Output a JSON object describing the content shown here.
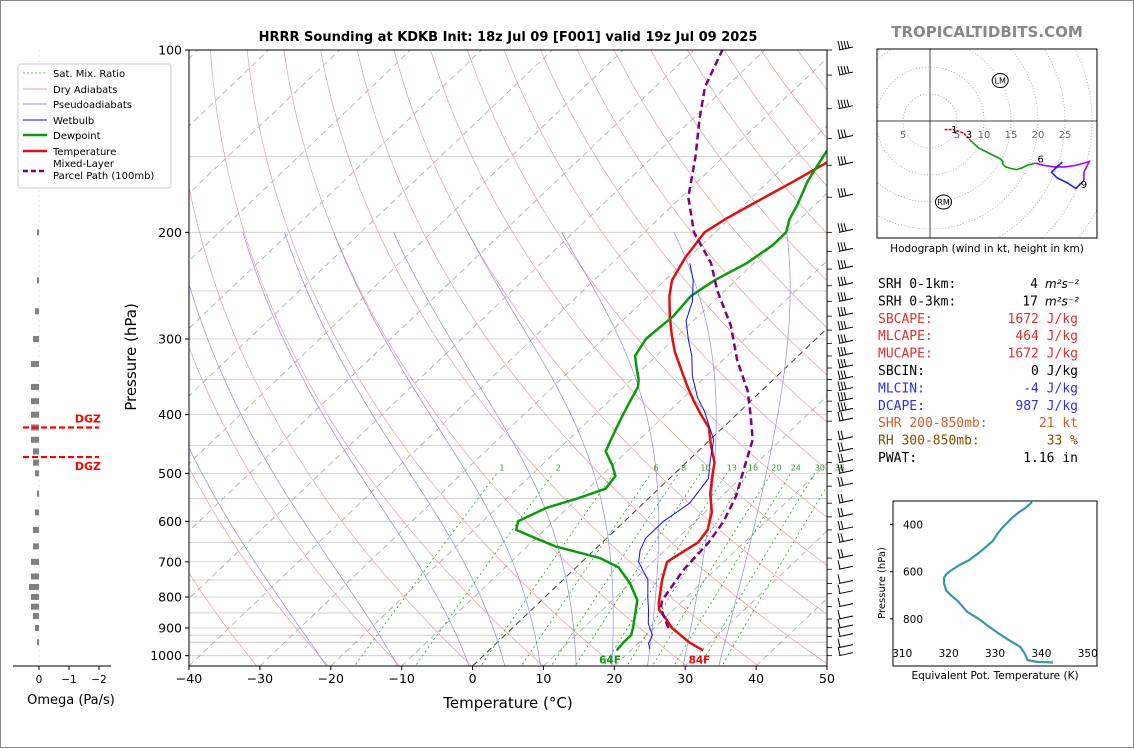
{
  "title": "HRRR Sounding at KDKB Init: 18z Jul 09 [F001] valid 19z Jul 09 2025",
  "watermark": "TROPICALTIDBITS.COM",
  "colors": {
    "temperature": "#e01010",
    "dewpoint": "#0a9a0a",
    "wetbulb": "#1010e0",
    "parcel": "#800080",
    "dgz": "#ff0000",
    "theta_e": "#3399aa",
    "hodo_0_3": "#e01010",
    "hodo_3_6": "#0a9a0a",
    "hodo_6_9": "#b400ff",
    "hodo_9_12": "#2020e0"
  },
  "legend": [
    "Sat. Mix. Ratio",
    "Dry Adiabats",
    "Pseudoadiabats",
    "Wetbulb",
    "Dewpoint",
    "Temperature",
    "Mixed-Layer\nParcel Path (100mb)"
  ],
  "omega": {
    "xlabel": "Omega (Pa/s)",
    "ticks": [
      "0",
      "−1",
      "−2"
    ],
    "dgz_label": "DGZ"
  },
  "sfc_labels": {
    "dewpoint": "64F",
    "temperature": "84F"
  },
  "hodograph": {
    "caption": "Hodograph (wind in kt, height in km)",
    "ring_labels": [
      "5",
      "5",
      "10",
      "15",
      "20",
      "25"
    ],
    "height_labels": [
      "1",
      "3",
      "6",
      "9"
    ],
    "storm_labels": [
      "LM",
      "RM"
    ]
  },
  "indices": [
    {
      "label": "SRH 0-1km:",
      "value": "4",
      "unit": "m²s⁻²",
      "color": "#000000"
    },
    {
      "label": "SRH 0-3km:",
      "value": "17",
      "unit": "m²s⁻²",
      "color": "#000000"
    },
    {
      "label": "SBCAPE:",
      "value": "1672 J/kg",
      "unit": "",
      "color": "#e03030"
    },
    {
      "label": "MLCAPE:",
      "value": "464 J/kg",
      "unit": "",
      "color": "#e03030"
    },
    {
      "label": "MUCAPE:",
      "value": "1672 J/kg",
      "unit": "",
      "color": "#e03030"
    },
    {
      "label": "SBCIN:",
      "value": "0 J/kg",
      "unit": "",
      "color": "#000000"
    },
    {
      "label": "MLCIN:",
      "value": "-4 J/kg",
      "unit": "",
      "color": "#3030e0"
    },
    {
      "label": "DCAPE:",
      "value": "987 J/kg",
      "unit": "",
      "color": "#3030e0"
    },
    {
      "label": "SHR 200-850mb:",
      "value": "21 kt",
      "unit": "",
      "color": "#d06030"
    },
    {
      "label": "RH 300-850mb:",
      "value": "33 %",
      "unit": "",
      "color": "#805000"
    },
    {
      "label": "PWAT:",
      "value": "1.16 in",
      "unit": "",
      "color": "#000000"
    }
  ],
  "chart_data": [
    {
      "type": "line",
      "title": "HRRR Sounding at KDKB Init: 18z Jul 09 [F001] valid 19z Jul 09 2025",
      "xlabel": "Temperature (°C)",
      "ylabel": "Pressure (hPa)",
      "xlim": [
        -40,
        50
      ],
      "ylim": [
        1040,
        100
      ],
      "y_scale": "log",
      "x_ticks": [
        -40,
        -30,
        -20,
        -10,
        0,
        10,
        20,
        30,
        40,
        50
      ],
      "y_ticks": [
        100,
        200,
        300,
        400,
        500,
        600,
        700,
        800,
        900,
        1000
      ],
      "mixing_ratio_labels": [
        "1",
        "2",
        "6",
        "8",
        "10",
        "13",
        "16",
        "20",
        "24",
        "30",
        "36"
      ],
      "series": [
        {
          "name": "Temperature",
          "points": [
            [
              30.2,
              980
            ],
            [
              27,
              950
            ],
            [
              22.5,
              900
            ],
            [
              19.6,
              860
            ],
            [
              18,
              840
            ],
            [
              17,
              820
            ],
            [
              14,
              750
            ],
            [
              12,
              700
            ],
            [
              12.6,
              680
            ],
            [
              13.5,
              650
            ],
            [
              13,
              620
            ],
            [
              11,
              580
            ],
            [
              8,
              540
            ],
            [
              6,
              510
            ],
            [
              4,
              480
            ],
            [
              1,
              450
            ],
            [
              -2,
              420
            ],
            [
              -5,
              400
            ],
            [
              -8,
              380
            ],
            [
              -11,
              360
            ],
            [
              -14,
              340
            ],
            [
              -18,
              315
            ],
            [
              -21,
              295
            ],
            [
              -24,
              275
            ],
            [
              -27,
              255
            ],
            [
              -29,
              240
            ],
            [
              -30.5,
              220
            ],
            [
              -31,
              210
            ],
            [
              -31.5,
              200
            ],
            [
              -30.5,
              190
            ],
            [
              -29,
              180
            ],
            [
              -26.5,
              165
            ],
            [
              -24,
              150
            ],
            [
              -23,
              140
            ],
            [
              -22,
              130
            ],
            [
              -20.5,
              120
            ],
            [
              -19,
              110
            ],
            [
              -18,
              100
            ]
          ]
        },
        {
          "name": "Dewpoint",
          "points": [
            [
              18,
              980
            ],
            [
              17.8,
              950
            ],
            [
              17.8,
              925
            ],
            [
              17,
              900
            ],
            [
              15.5,
              860
            ],
            [
              13.5,
              810
            ],
            [
              10,
              760
            ],
            [
              6,
              715
            ],
            [
              2,
              690
            ],
            [
              -6,
              660
            ],
            [
              -10,
              640
            ],
            [
              -14,
              620
            ],
            [
              -15,
              600
            ],
            [
              -13,
              570
            ],
            [
              -10,
              550
            ],
            [
              -7.5,
              530
            ],
            [
              -8,
              505
            ],
            [
              -10,
              485
            ],
            [
              -13,
              460
            ],
            [
              -14,
              440
            ],
            [
              -15,
              420
            ],
            [
              -16,
              400
            ],
            [
              -17,
              380
            ],
            [
              -18,
              360
            ],
            [
              -19,
              350
            ],
            [
              -21,
              335
            ],
            [
              -23,
              320
            ],
            [
              -24,
              300
            ],
            [
              -23.5,
              275
            ],
            [
              -24,
              255
            ],
            [
              -23,
              240
            ],
            [
              -21,
              225
            ],
            [
              -20,
              210
            ],
            [
              -20,
              200
            ],
            [
              -21.5,
              190
            ],
            [
              -22.5,
              180
            ],
            [
              -24.5,
              165
            ],
            [
              -26,
              150
            ],
            [
              -27,
              140
            ],
            [
              -28,
              130
            ],
            [
              -29,
              120
            ],
            [
              -28.5,
              110
            ],
            [
              -28,
              100
            ]
          ]
        },
        {
          "name": "Wetbulb",
          "points": [
            [
              22.5,
              975
            ],
            [
              21.5,
              955
            ],
            [
              20.8,
              925
            ],
            [
              18.5,
              885
            ],
            [
              16.5,
              840
            ],
            [
              14.5,
              800
            ],
            [
              12,
              750
            ],
            [
              8,
              700
            ],
            [
              6.5,
              670
            ],
            [
              5.5,
              640
            ],
            [
              5.5,
              600
            ],
            [
              6.5,
              560
            ],
            [
              5.5,
              510
            ],
            [
              3,
              475
            ],
            [
              0.5,
              440
            ],
            [
              -2.5,
              415
            ],
            [
              -5,
              395
            ],
            [
              -8,
              375
            ],
            [
              -12,
              345
            ],
            [
              -15,
              320
            ],
            [
              -18,
              300
            ],
            [
              -21,
              280
            ],
            [
              -23,
              260
            ],
            [
              -26,
              240
            ],
            [
              -29,
              225
            ]
          ]
        },
        {
          "name": "Mixed-Layer\nParcel Path (100mb)",
          "points": [
            [
              22,
              900
            ],
            [
              18,
              835
            ],
            [
              17,
              810
            ],
            [
              15.5,
              720
            ],
            [
              15,
              650
            ],
            [
              14,
              600
            ],
            [
              12,
              545
            ],
            [
              9,
              490
            ],
            [
              6,
              440
            ],
            [
              2,
              400
            ],
            [
              -2,
              365
            ],
            [
              -8,
              325
            ],
            [
              -14,
              285
            ],
            [
              -21,
              250
            ],
            [
              -26,
              225
            ],
            [
              -33,
              200
            ],
            [
              -39,
              175
            ],
            [
              -44,
              150
            ],
            [
              -49,
              130
            ],
            [
              -53,
              115
            ],
            [
              -56,
              100
            ]
          ]
        }
      ]
    },
    {
      "type": "line",
      "title": "Hodograph (wind in kt, height in km)",
      "rings": [
        5,
        10,
        15,
        20,
        25
      ],
      "series": [
        {
          "name": "0-3 km",
          "points": [
            [
              2.7,
              -1.6
            ],
            [
              4.3,
              -1.6
            ],
            [
              6.2,
              -2.2
            ],
            [
              7.5,
              -3.6
            ]
          ]
        },
        {
          "name": "3-6 km",
          "points": [
            [
              7.5,
              -3.6
            ],
            [
              9,
              -5
            ],
            [
              12,
              -6.5
            ],
            [
              13,
              -7
            ],
            [
              13.5,
              -7.5
            ],
            [
              13.5,
              -8
            ],
            [
              14,
              -8.5
            ],
            [
              15,
              -8.8
            ],
            [
              16,
              -9
            ],
            [
              17,
              -8.7
            ],
            [
              18,
              -8.2
            ],
            [
              19.5,
              -7.8
            ]
          ]
        },
        {
          "name": "6-9 km",
          "points": [
            [
              19.5,
              -7.8
            ],
            [
              21,
              -8.2
            ],
            [
              23,
              -8.5
            ],
            [
              25,
              -8.5
            ],
            [
              27,
              -8.2
            ],
            [
              28.5,
              -7.8
            ],
            [
              29.5,
              -7.5
            ],
            [
              29,
              -8.5
            ],
            [
              28.5,
              -9.5
            ],
            [
              28.5,
              -11
            ]
          ]
        },
        {
          "name": "9-12 km",
          "points": [
            [
              28.5,
              -11
            ],
            [
              27,
              -12.5
            ],
            [
              25.5,
              -11.5
            ],
            [
              23.5,
              -10.5
            ],
            [
              22.5,
              -9.5
            ],
            [
              23.5,
              -8.5
            ],
            [
              24.5,
              -7.6
            ]
          ]
        }
      ],
      "LM": [
        13,
        7.5
      ],
      "RM": [
        2.5,
        -15
      ]
    },
    {
      "type": "line",
      "xlabel": "Equivalent Pot. Temperature (K)",
      "ylabel": "Pressure (hPa)",
      "xlim": [
        308,
        352
      ],
      "ylim": [
        1000,
        300
      ],
      "x_ticks": [
        310,
        320,
        330,
        340,
        350
      ],
      "y_ticks": [
        400,
        600,
        800
      ],
      "series": [
        {
          "name": "theta-e",
          "points": [
            [
              342.5,
              985
            ],
            [
              339,
              982
            ],
            [
              337,
              975
            ],
            [
              336.5,
              950
            ],
            [
              335.5,
              920
            ],
            [
              333,
              890
            ],
            [
              331,
              865
            ],
            [
              328.5,
              830
            ],
            [
              326.5,
              800
            ],
            [
              324,
              770
            ],
            [
              322,
              725
            ],
            [
              320.5,
              700
            ],
            [
              319.5,
              680
            ],
            [
              319,
              650
            ],
            [
              319,
              625
            ],
            [
              319.5,
              610
            ],
            [
              320.5,
              595
            ],
            [
              322.5,
              570
            ],
            [
              324.5,
              550
            ],
            [
              326.5,
              520
            ],
            [
              328,
              495
            ],
            [
              329.5,
              470
            ],
            [
              330.5,
              440
            ],
            [
              331.5,
              415
            ],
            [
              332.5,
              395
            ],
            [
              333.5,
              375
            ],
            [
              335,
              350
            ],
            [
              336.5,
              330
            ],
            [
              338,
              305
            ]
          ]
        }
      ]
    }
  ]
}
